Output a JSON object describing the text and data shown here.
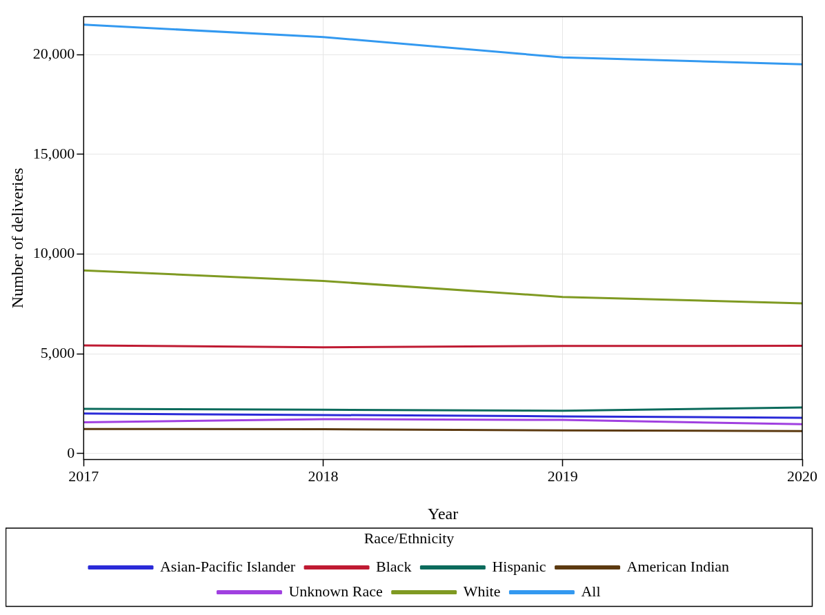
{
  "chart_data": {
    "type": "line",
    "xlabel": "Year",
    "ylabel": "Number of deliveries",
    "legend_title": "Race/Ethnicity",
    "legend": "bottom",
    "grid": true,
    "marker": "none",
    "line_style": "solid",
    "x": [
      2017,
      2018,
      2019,
      2020
    ],
    "xlim": [
      2017,
      2020
    ],
    "xticks": [
      2017,
      2018,
      2019,
      2020
    ],
    "ylim": [
      -300,
      21900
    ],
    "yticks": [
      {
        "value": 0,
        "label": "0"
      },
      {
        "value": 5000,
        "label": "5,000"
      },
      {
        "value": 10000,
        "label": "10,000"
      },
      {
        "value": 15000,
        "label": "15,000"
      },
      {
        "value": 20000,
        "label": "20,000"
      }
    ],
    "series": [
      {
        "name": "Asian-Pacific Islander",
        "color": "#2a2ad8",
        "values": [
          2000,
          1930,
          1860,
          1790
        ]
      },
      {
        "name": "Black",
        "color": "#bf1a32",
        "values": [
          5420,
          5320,
          5390,
          5400
        ]
      },
      {
        "name": "Hispanic",
        "color": "#0c6b5c",
        "values": [
          2240,
          2190,
          2140,
          2310
        ]
      },
      {
        "name": "American Indian",
        "color": "#5c3a10",
        "values": [
          1230,
          1220,
          1160,
          1120
        ]
      },
      {
        "name": "Unknown Race",
        "color": "#a040e0",
        "values": [
          1560,
          1720,
          1680,
          1470
        ]
      },
      {
        "name": "White",
        "color": "#7f9a22",
        "values": [
          9180,
          8650,
          7850,
          7530
        ]
      },
      {
        "name": "All",
        "color": "#3399f0",
        "values": [
          21500,
          20880,
          19860,
          19510
        ]
      }
    ]
  }
}
